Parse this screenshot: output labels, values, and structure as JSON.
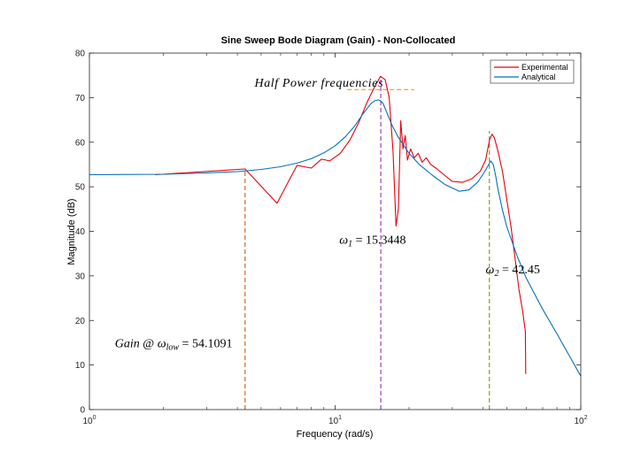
{
  "chart_data": {
    "type": "line",
    "title": "Sine Sweep Bode Diagram (Gain) - Non-Collocated",
    "xlabel": "Frequency  (rad/s)",
    "ylabel": "Magnitude (dB)",
    "xscale": "log",
    "xlim": [
      1,
      100
    ],
    "ylim": [
      0,
      80
    ],
    "x_ticks": [
      1,
      10,
      100
    ],
    "x_tick_labels": [
      {
        "base": "10",
        "exp": "0"
      },
      {
        "base": "10",
        "exp": "1"
      },
      {
        "base": "10",
        "exp": "2"
      }
    ],
    "y_ticks": [
      0,
      10,
      20,
      30,
      40,
      50,
      60,
      70,
      80
    ],
    "y_tick_labels": [
      "0",
      "10",
      "20",
      "30",
      "40",
      "50",
      "60",
      "70",
      "80"
    ],
    "grid": false,
    "legend_position": "top-right",
    "series": [
      {
        "name": "Experimental",
        "color": "#e8000b",
        "x": [
          1.85,
          4.3,
          5.8,
          7.0,
          8.0,
          8.8,
          9.5,
          10.5,
          11.5,
          12.5,
          13.5,
          14.5,
          15.3,
          16.0,
          16.6,
          17.2,
          17.7,
          18.1,
          18.5,
          18.9,
          19.3,
          19.7,
          20.3,
          21.0,
          21.8,
          22.6,
          23.5,
          24.5,
          26,
          28,
          30,
          33,
          36,
          39,
          41,
          42.5,
          43.5,
          44.5,
          46,
          48,
          50,
          52,
          54,
          56,
          58,
          59.5,
          59.7
        ],
        "y": [
          52.7,
          54.0,
          46.3,
          54.8,
          54.2,
          56.2,
          55.8,
          57.5,
          60.5,
          64.5,
          69.0,
          72.5,
          74.8,
          74.0,
          70.0,
          58.0,
          41.2,
          45.0,
          64.8,
          58.5,
          61.5,
          56.0,
          58.5,
          56.5,
          57.5,
          55.5,
          56.5,
          55.0,
          54.0,
          52.5,
          51.2,
          51.0,
          51.8,
          53.5,
          56.0,
          60.5,
          61.8,
          61.0,
          58.0,
          53.5,
          47.0,
          41.0,
          34.0,
          27.0,
          22.0,
          17.5,
          8.0
        ]
      },
      {
        "name": "Analytical",
        "color": "#0072bd",
        "x": [
          1,
          2,
          3,
          4,
          5,
          6,
          7,
          8,
          9,
          10,
          11,
          12,
          13,
          14,
          14.5,
          15,
          15.3,
          15.7,
          16.2,
          17,
          18,
          20,
          22,
          25,
          28,
          32,
          35,
          38,
          40,
          42,
          43,
          44,
          45,
          46,
          48,
          50,
          55,
          60,
          70,
          80,
          90,
          100
        ],
        "y": [
          52.7,
          52.8,
          53.1,
          53.4,
          53.9,
          54.5,
          55.3,
          56.3,
          57.6,
          59.2,
          61.2,
          63.6,
          66.4,
          68.7,
          69.3,
          69.5,
          69.3,
          68.6,
          66.8,
          64.0,
          61.3,
          57.5,
          55.0,
          52.5,
          50.5,
          49.0,
          49.3,
          51.0,
          52.8,
          54.8,
          55.8,
          55.0,
          52.5,
          49.5,
          44.8,
          41.0,
          34.5,
          29.5,
          22.5,
          17.0,
          12.0,
          7.5
        ]
      }
    ],
    "reference_lines": [
      {
        "name": "half-power-line",
        "color": "#e8a020",
        "dash": "dashed",
        "x_from": 11.2,
        "x_to": 21.0,
        "y": 71.8
      },
      {
        "name": "omega-low-line",
        "color": "#d2691e",
        "dash": "dashed",
        "x": 4.3,
        "y_top": 54.1
      },
      {
        "name": "omega-1-line",
        "color": "#a040c0",
        "dash": "dashed",
        "x": 15.3448,
        "y_top": 74.8
      },
      {
        "name": "omega-2-line",
        "color": "#7ea020",
        "dash": "dashed",
        "x": 42.45,
        "y_top": 62.5
      }
    ],
    "annotations": [
      {
        "name": "half-power-annotation",
        "style": "italic",
        "text": "Half Power frequencies",
        "x": 4.7,
        "y": 72.5
      },
      {
        "name": "omega-1-annotation",
        "parts": [
          {
            "t": "ω",
            "style": "italic"
          },
          {
            "t": "1",
            "style": "sub"
          },
          {
            "t": " =  15.3448",
            "style": "normal"
          }
        ],
        "x": 10.4,
        "y": 37.2
      },
      {
        "name": "omega-2-annotation",
        "parts": [
          {
            "t": "ω",
            "style": "italic"
          },
          {
            "t": "2",
            "style": "sub"
          },
          {
            "t": " =  42.45",
            "style": "normal"
          }
        ],
        "x": 41.0,
        "y": 30.6
      },
      {
        "name": "gain-annotation",
        "parts": [
          {
            "t": "Gain",
            "style": "italic"
          },
          {
            "t": " @ ",
            "style": "normal"
          },
          {
            "t": "ω",
            "style": "italic"
          },
          {
            "t": "low",
            "style": "sub"
          },
          {
            "t": " =  54.1091",
            "style": "normal"
          }
        ],
        "x": 1.27,
        "y": 14.0
      }
    ]
  }
}
